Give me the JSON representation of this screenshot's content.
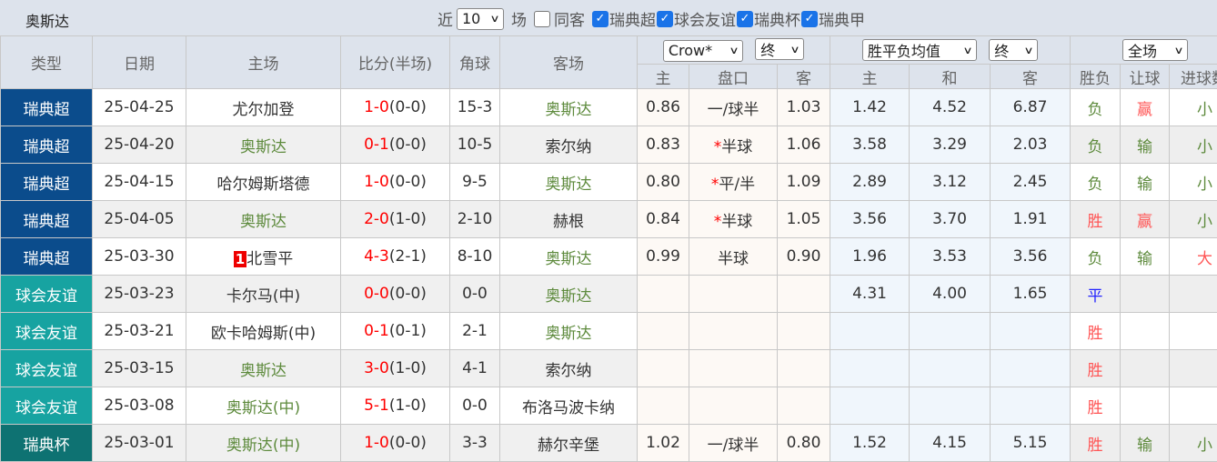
{
  "team_title": "奥斯达",
  "filters": {
    "near_label": "近",
    "count": "10",
    "count_unit": "场",
    "same_host_label": "同客",
    "same_host_checked": false,
    "leagues": [
      {
        "label": "瑞典超",
        "checked": true
      },
      {
        "label": "球会友谊",
        "checked": true
      },
      {
        "label": "瑞典杯",
        "checked": true
      },
      {
        "label": "瑞典甲",
        "checked": true
      }
    ]
  },
  "headers": {
    "type": "类型",
    "date": "日期",
    "home": "主场",
    "score": "比分(半场)",
    "corner": "角球",
    "away": "客场",
    "company_select": "Crow*",
    "odds_state_select": "终",
    "avg_select": "胜平负均值",
    "avg_state_select": "终",
    "period_select": "全场",
    "sub": [
      "主",
      "盘口",
      "客",
      "主",
      "和",
      "客",
      "胜负",
      "让球",
      "进球数"
    ]
  },
  "colors": {
    "瑞典超": "#0b4c8c",
    "球会友谊": "#17a3a1",
    "瑞典杯": "#0e7272",
    "team_highlight": "#5d8a3c",
    "score_red": "#ff0000"
  },
  "rows": [
    {
      "type": "瑞典超",
      "date": "25-04-25",
      "home": "尤尔加登",
      "home_hl": false,
      "ft": "1-0",
      "ht": "(0-0)",
      "corner": "15-3",
      "away": "奥斯达",
      "away_hl": true,
      "oh": "0.86",
      "hc_ast": false,
      "hc": "一/球半",
      "oa": "1.03",
      "xh": "1.42",
      "xd": "4.52",
      "xa": "6.87",
      "r1": "负",
      "r2": "赢",
      "r3": "小"
    },
    {
      "type": "瑞典超",
      "date": "25-04-20",
      "home": "奥斯达",
      "home_hl": true,
      "ft": "0-1",
      "ht": "(0-0)",
      "corner": "10-5",
      "away": "索尔纳",
      "away_hl": false,
      "oh": "0.83",
      "hc_ast": true,
      "hc": "半球",
      "oa": "1.06",
      "xh": "3.58",
      "xd": "3.29",
      "xa": "2.03",
      "r1": "负",
      "r2": "输",
      "r3": "小"
    },
    {
      "type": "瑞典超",
      "date": "25-04-15",
      "home": "哈尔姆斯塔德",
      "home_hl": false,
      "ft": "1-0",
      "ht": "(0-0)",
      "corner": "9-5",
      "away": "奥斯达",
      "away_hl": true,
      "oh": "0.80",
      "hc_ast": true,
      "hc": "平/半",
      "oa": "1.09",
      "xh": "2.89",
      "xd": "3.12",
      "xa": "2.45",
      "r1": "负",
      "r2": "输",
      "r3": "小"
    },
    {
      "type": "瑞典超",
      "date": "25-04-05",
      "home": "奥斯达",
      "home_hl": true,
      "ft": "2-0",
      "ht": "(1-0)",
      "corner": "2-10",
      "away": "赫根",
      "away_hl": false,
      "oh": "0.84",
      "hc_ast": true,
      "hc": "半球",
      "oa": "1.05",
      "xh": "3.56",
      "xd": "3.70",
      "xa": "1.91",
      "r1": "胜",
      "r2": "赢",
      "r3": "小"
    },
    {
      "type": "瑞典超",
      "date": "25-03-30",
      "home_red_card": "1",
      "home": "北雪平",
      "home_hl": false,
      "ft": "4-3",
      "ht": "(2-1)",
      "corner": "8-10",
      "away": "奥斯达",
      "away_hl": true,
      "oh": "0.99",
      "hc_ast": false,
      "hc": "半球",
      "oa": "0.90",
      "xh": "1.96",
      "xd": "3.53",
      "xa": "3.56",
      "r1": "负",
      "r2": "输",
      "r3": "大"
    },
    {
      "type": "球会友谊",
      "date": "25-03-23",
      "home": "卡尔马(中)",
      "home_hl": false,
      "ft": "0-0",
      "ht": "(0-0)",
      "corner": "0-0",
      "away": "奥斯达",
      "away_hl": true,
      "oh": "",
      "hc_ast": false,
      "hc": "",
      "oa": "",
      "xh": "4.31",
      "xd": "4.00",
      "xa": "1.65",
      "r1": "平",
      "r2": "",
      "r3": ""
    },
    {
      "type": "球会友谊",
      "date": "25-03-21",
      "home": "欧卡哈姆斯(中)",
      "home_hl": false,
      "ft": "0-1",
      "ht": "(0-1)",
      "corner": "2-1",
      "away": "奥斯达",
      "away_hl": true,
      "oh": "",
      "hc_ast": false,
      "hc": "",
      "oa": "",
      "xh": "",
      "xd": "",
      "xa": "",
      "r1": "胜",
      "r2": "",
      "r3": ""
    },
    {
      "type": "球会友谊",
      "date": "25-03-15",
      "home": "奥斯达",
      "home_hl": true,
      "ft": "3-0",
      "ht": "(1-0)",
      "corner": "4-1",
      "away": "索尔纳",
      "away_hl": false,
      "oh": "",
      "hc_ast": false,
      "hc": "",
      "oa": "",
      "xh": "",
      "xd": "",
      "xa": "",
      "r1": "胜",
      "r2": "",
      "r3": ""
    },
    {
      "type": "球会友谊",
      "date": "25-03-08",
      "home": "奥斯达(中)",
      "home_hl": true,
      "ft": "5-1",
      "ht": "(1-0)",
      "corner": "0-0",
      "away": "布洛马波卡纳",
      "away_hl": false,
      "oh": "",
      "hc_ast": false,
      "hc": "",
      "oa": "",
      "xh": "",
      "xd": "",
      "xa": "",
      "r1": "胜",
      "r2": "",
      "r3": ""
    },
    {
      "type": "瑞典杯",
      "date": "25-03-01",
      "home": "奥斯达(中)",
      "home_hl": true,
      "ft": "1-0",
      "ht": "(0-0)",
      "corner": "3-3",
      "away": "赫尔辛堡",
      "away_hl": false,
      "oh": "1.02",
      "hc_ast": false,
      "hc": "一/球半",
      "oa": "0.80",
      "xh": "1.52",
      "xd": "4.15",
      "xa": "5.15",
      "r1": "胜",
      "r2": "输",
      "r3": "小"
    }
  ]
}
